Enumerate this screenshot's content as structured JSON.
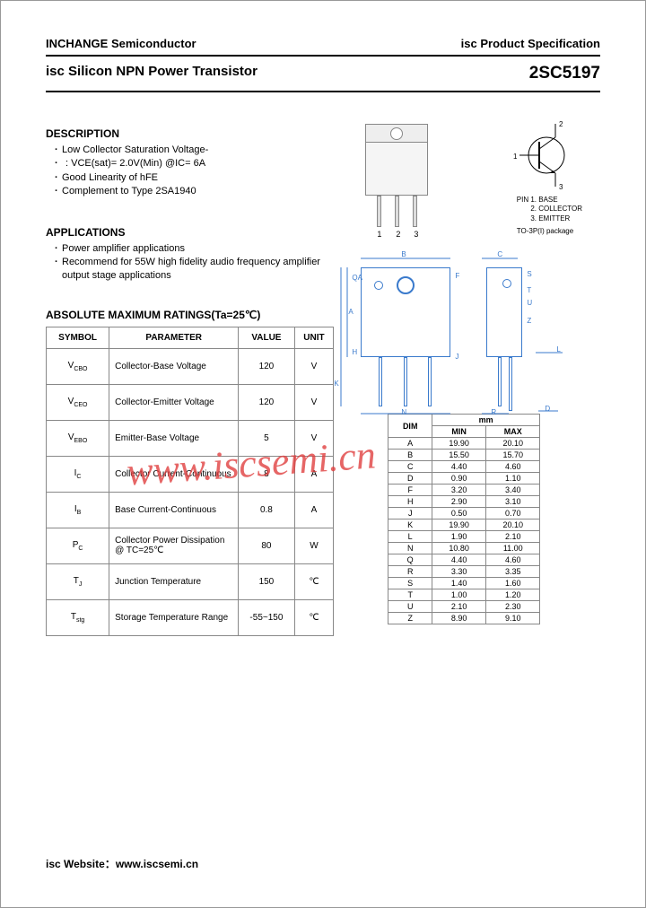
{
  "header": {
    "left": "INCHANGE Semiconductor",
    "right": "isc Product Specification",
    "sub_left": "isc Silicon NPN Power Transistor",
    "part_number": "2SC5197"
  },
  "description": {
    "title": "DESCRIPTION",
    "items": [
      "Low Collector Saturation Voltage-",
      ": VCE(sat)= 2.0V(Min) @IC= 6A",
      "Good Linearity of hFE",
      "Complement to Type 2SA1940"
    ]
  },
  "applications": {
    "title": "APPLICATIONS",
    "items": [
      "Power amplifier applications",
      "Recommend for 55W high fidelity audio frequency amplifier output stage applications"
    ]
  },
  "pins": {
    "header": "PIN",
    "p1": "1. BASE",
    "p2": "2. COLLECTOR",
    "p3": "3. EMITTER",
    "package": "TO-3P(I) package"
  },
  "ratings": {
    "title": "ABSOLUTE MAXIMUM RATINGS(Ta=25℃)",
    "columns": [
      "SYMBOL",
      "PARAMETER",
      "VALUE",
      "UNIT"
    ],
    "rows": [
      {
        "symbol": "VCBO",
        "param": "Collector-Base Voltage",
        "value": "120",
        "unit": "V"
      },
      {
        "symbol": "VCEO",
        "param": "Collector-Emitter Voltage",
        "value": "120",
        "unit": "V"
      },
      {
        "symbol": "VEBO",
        "param": "Emitter-Base Voltage",
        "value": "5",
        "unit": "V"
      },
      {
        "symbol": "IC",
        "param": "Collector Current-Continuous",
        "value": "8",
        "unit": "A"
      },
      {
        "symbol": "IB",
        "param": "Base Current-Continuous",
        "value": "0.8",
        "unit": "A"
      },
      {
        "symbol": "PC",
        "param": "Collector Power Dissipation @ TC=25℃",
        "value": "80",
        "unit": "W"
      },
      {
        "symbol": "TJ",
        "param": "Junction Temperature",
        "value": "150",
        "unit": "℃"
      },
      {
        "symbol": "Tstg",
        "param": "Storage Temperature Range",
        "value": "-55~150",
        "unit": "℃"
      }
    ]
  },
  "dimensions": {
    "header_unit": "mm",
    "columns": [
      "DIM",
      "MIN",
      "MAX"
    ],
    "rows": [
      {
        "dim": "A",
        "min": "19.90",
        "max": "20.10"
      },
      {
        "dim": "B",
        "min": "15.50",
        "max": "15.70"
      },
      {
        "dim": "C",
        "min": "4.40",
        "max": "4.60"
      },
      {
        "dim": "D",
        "min": "0.90",
        "max": "1.10"
      },
      {
        "dim": "F",
        "min": "3.20",
        "max": "3.40"
      },
      {
        "dim": "H",
        "min": "2.90",
        "max": "3.10"
      },
      {
        "dim": "J",
        "min": "0.50",
        "max": "0.70"
      },
      {
        "dim": "K",
        "min": "19.90",
        "max": "20.10"
      },
      {
        "dim": "L",
        "min": "1.90",
        "max": "2.10"
      },
      {
        "dim": "N",
        "min": "10.80",
        "max": "11.00"
      },
      {
        "dim": "Q",
        "min": "4.40",
        "max": "4.60"
      },
      {
        "dim": "R",
        "min": "3.30",
        "max": "3.35"
      },
      {
        "dim": "S",
        "min": "1.40",
        "max": "1.60"
      },
      {
        "dim": "T",
        "min": "1.00",
        "max": "1.20"
      },
      {
        "dim": "U",
        "min": "2.10",
        "max": "2.30"
      },
      {
        "dim": "Z",
        "min": "8.90",
        "max": "9.10"
      }
    ]
  },
  "mech_labels": {
    "B": "B",
    "C": "C",
    "A": "A",
    "K": "K",
    "N": "N",
    "R": "R",
    "D": "D",
    "L": "L",
    "S": "S",
    "T": "T",
    "U": "U",
    "Z": "Z",
    "H": "H",
    "J": "J",
    "F": "F",
    "Q": "Q",
    "QA": "QA"
  },
  "watermark": "www.iscsemi.cn",
  "footer": {
    "label": "isc Website：",
    "url": "www.iscsemi.cn"
  },
  "colors": {
    "text": "#000000",
    "border": "#888888",
    "mech_line": "#3a7acc",
    "watermark": "#e04040"
  }
}
